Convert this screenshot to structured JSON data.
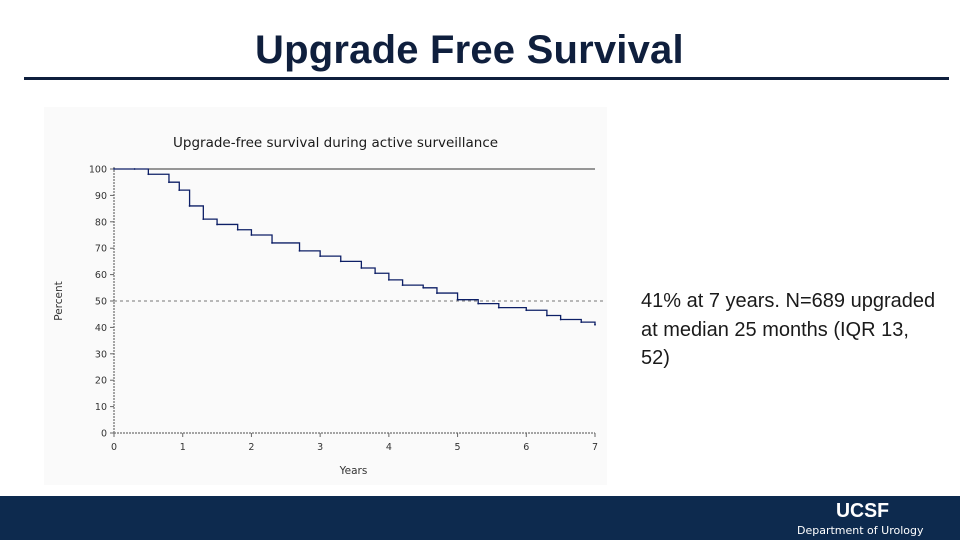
{
  "slide": {
    "title": "Upgrade Free Survival",
    "annotation": "41% at 7 years. N=689 upgraded at median 25 months (IQR 13, 52)"
  },
  "footer": {
    "logo_text": "UCSF",
    "department": "Department of Urology"
  },
  "colors": {
    "title_text": "#0f1f3d",
    "curve": "#0d1f66",
    "footer_bar": "#0d2a4e"
  },
  "chart_data": {
    "type": "line",
    "title": "Upgrade-free survival during active surveillance",
    "xlabel": "Years",
    "ylabel": "Percent",
    "xlim": [
      0,
      7
    ],
    "ylim": [
      0,
      100
    ],
    "x_ticks": [
      "0",
      "1",
      "2",
      "3",
      "4",
      "5",
      "6",
      "7"
    ],
    "y_ticks": [
      "0",
      "10",
      "20",
      "30",
      "40",
      "50",
      "60",
      "70",
      "80",
      "90",
      "100"
    ],
    "reference_line_y": 50,
    "grid": false,
    "legend": "none",
    "series": [
      {
        "x": [
          0,
          0.3,
          0.5,
          0.8,
          0.95,
          1.1,
          1.3,
          1.5,
          1.8,
          2.0,
          2.3,
          2.7,
          3.0,
          3.3,
          3.6,
          3.8,
          4.0,
          4.2,
          4.5,
          4.7,
          5.0,
          5.3,
          5.6,
          6.0,
          6.3,
          6.5,
          6.8,
          7.0
        ],
        "y": [
          100,
          100,
          98,
          95,
          92,
          86,
          81,
          79,
          77,
          75,
          72,
          69,
          67,
          65,
          62.5,
          60.5,
          58,
          56,
          55,
          53,
          50.5,
          49,
          47.5,
          46.5,
          44.5,
          43,
          42,
          41
        ]
      }
    ]
  }
}
